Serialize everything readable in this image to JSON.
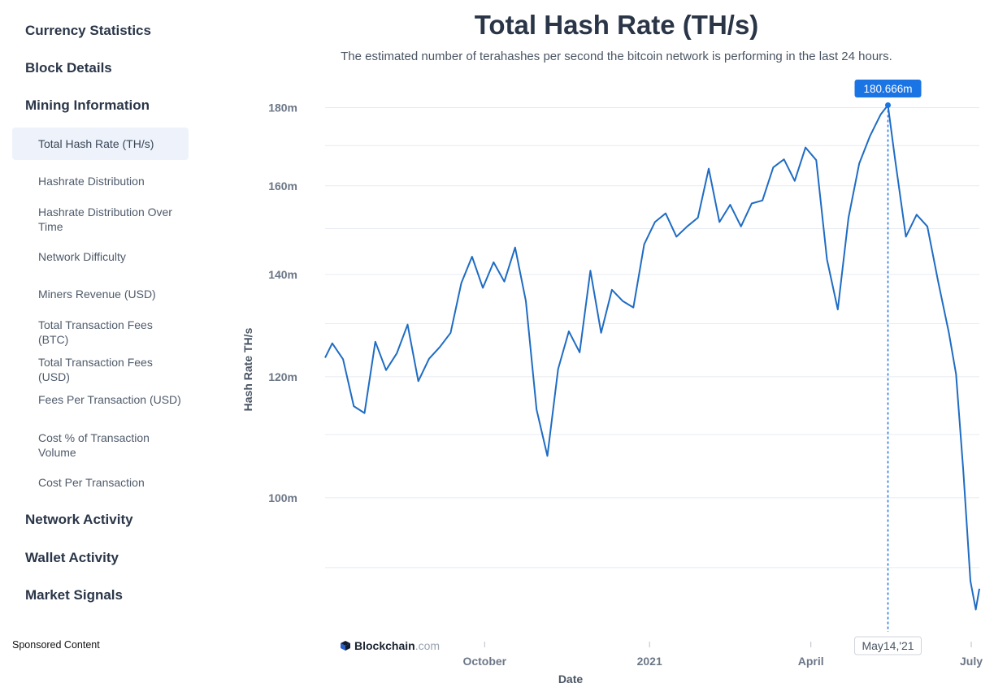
{
  "sidebar": {
    "currency_statistics": "Currency Statistics",
    "block_details": "Block Details",
    "mining_information": "Mining Information",
    "mining_items": [
      "Total Hash Rate (TH/s)",
      "Hashrate Distribution",
      "Hashrate Distribution Over Time",
      "Network Difficulty",
      "Miners Revenue (USD)",
      "Total Transaction Fees (BTC)",
      "Total Transaction Fees (USD)",
      "Fees Per Transaction (USD)",
      "Cost % of Transaction Volume",
      "Cost Per Transaction"
    ],
    "network_activity": "Network Activity",
    "wallet_activity": "Wallet Activity",
    "market_signals": "Market Signals",
    "sponsored": "Sponsored Content"
  },
  "logo": {
    "brand": "Blockchain",
    "domain": ".com"
  },
  "colors": {
    "line": "#1f6cc3",
    "tooltip": "#1b74e4",
    "grid": "#e7ebf0"
  },
  "chart_data": {
    "type": "line",
    "title": "Total Hash Rate (TH/s)",
    "subtitle": "The estimated number of terahashes per second the bitcoin network is performing in the last 24 hours.",
    "xlabel": "Date",
    "ylabel": "Hash Rate TH/s",
    "y_scale": "log",
    "ylim": [
      82,
      181
    ],
    "y_ticks": [
      100,
      120,
      140,
      160,
      180
    ],
    "y_tick_labels": [
      "100m",
      "120m",
      "140m",
      "160m",
      "180m"
    ],
    "x_range": [
      "2020-07-04",
      "2021-07-04"
    ],
    "x_ticks": [
      "2020-10-01",
      "2021-01-01",
      "2021-04-01",
      "2021-07-01"
    ],
    "x_tick_labels": [
      "October",
      "2021",
      "April",
      "July"
    ],
    "grid": true,
    "tooltip": {
      "date": "2021-05-14",
      "value_label": "180.666m",
      "date_label": "May14,'21"
    },
    "series": [
      {
        "x": [
          "2020-07-04",
          "2020-07-08",
          "2020-07-14",
          "2020-07-20",
          "2020-07-26",
          "2020-08-01",
          "2020-08-07",
          "2020-08-13",
          "2020-08-19",
          "2020-08-25",
          "2020-08-31",
          "2020-09-06",
          "2020-09-12",
          "2020-09-18",
          "2020-09-24",
          "2020-09-30",
          "2020-10-06",
          "2020-10-12",
          "2020-10-18",
          "2020-10-24",
          "2020-10-30",
          "2020-11-05",
          "2020-11-11",
          "2020-11-17",
          "2020-11-23",
          "2020-11-29",
          "2020-12-05",
          "2020-12-11",
          "2020-12-17",
          "2020-12-23",
          "2020-12-29",
          "2021-01-04",
          "2021-01-10",
          "2021-01-16",
          "2021-01-22",
          "2021-01-28",
          "2021-02-03",
          "2021-02-09",
          "2021-02-15",
          "2021-02-21",
          "2021-02-27",
          "2021-03-05",
          "2021-03-11",
          "2021-03-17",
          "2021-03-23",
          "2021-03-29",
          "2021-04-04",
          "2021-04-10",
          "2021-04-16",
          "2021-04-22",
          "2021-04-28",
          "2021-05-04",
          "2021-05-10",
          "2021-05-14",
          "2021-05-18",
          "2021-05-24",
          "2021-05-30",
          "2021-06-05",
          "2021-06-11",
          "2021-06-17",
          "2021-06-21",
          "2021-06-25",
          "2021-06-29",
          "2021-07-02",
          "2021-07-04"
        ],
        "values": [
          123.5,
          126.2,
          123.2,
          114.8,
          113.6,
          126.5,
          121.2,
          124.3,
          129.8,
          119.2,
          123.3,
          125.5,
          128.2,
          138.2,
          143.8,
          137.2,
          142.6,
          138.5,
          145.8,
          134.5,
          114.2,
          106.5,
          121.4,
          128.5,
          124.5,
          140.8,
          128.2,
          136.8,
          134.5,
          133.2,
          146.5,
          151.5,
          153.5,
          148.2,
          150.5,
          152.5,
          164.2,
          151.5,
          155.5,
          150.5,
          155.8,
          156.5,
          164.5,
          166.5,
          161.2,
          169.5,
          166.3,
          143.2,
          132.8,
          152.5,
          165.5,
          172.5,
          178.2,
          180.666,
          166.5,
          148.2,
          153.2,
          150.5,
          138.5,
          128.2,
          120.5,
          104.2,
          88.2,
          84.5,
          87.2
        ]
      }
    ]
  }
}
